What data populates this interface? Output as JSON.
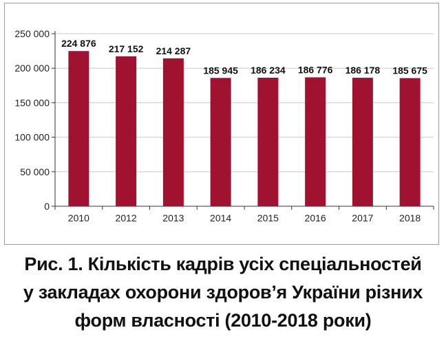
{
  "chart_data": {
    "type": "bar",
    "categories": [
      "2010",
      "2012",
      "2013",
      "2014",
      "2015",
      "2016",
      "2017",
      "2018"
    ],
    "values": [
      224876,
      217152,
      214287,
      185945,
      186234,
      186776,
      186178,
      185675
    ],
    "data_labels": [
      "224 876",
      "217 152",
      "214 287",
      "185 945",
      "186 234",
      "186 776",
      "186 178",
      "185 675"
    ],
    "yticks": [
      0,
      50000,
      100000,
      150000,
      200000,
      250000
    ],
    "ytick_labels": [
      "0",
      "50 000",
      "100 000",
      "150 000",
      "200 000",
      "250 000"
    ],
    "ylim": [
      0,
      250000
    ],
    "grid": true,
    "bar_color": "#a0122f",
    "grid_color": "#c8c8c8"
  },
  "caption": {
    "line1": "Рис. 1. Кількість кадрів усіх спеціальностей",
    "line2": "у закладах охорони здоров’я України різних",
    "line3": "форм власності (2010-2018 роки)"
  }
}
